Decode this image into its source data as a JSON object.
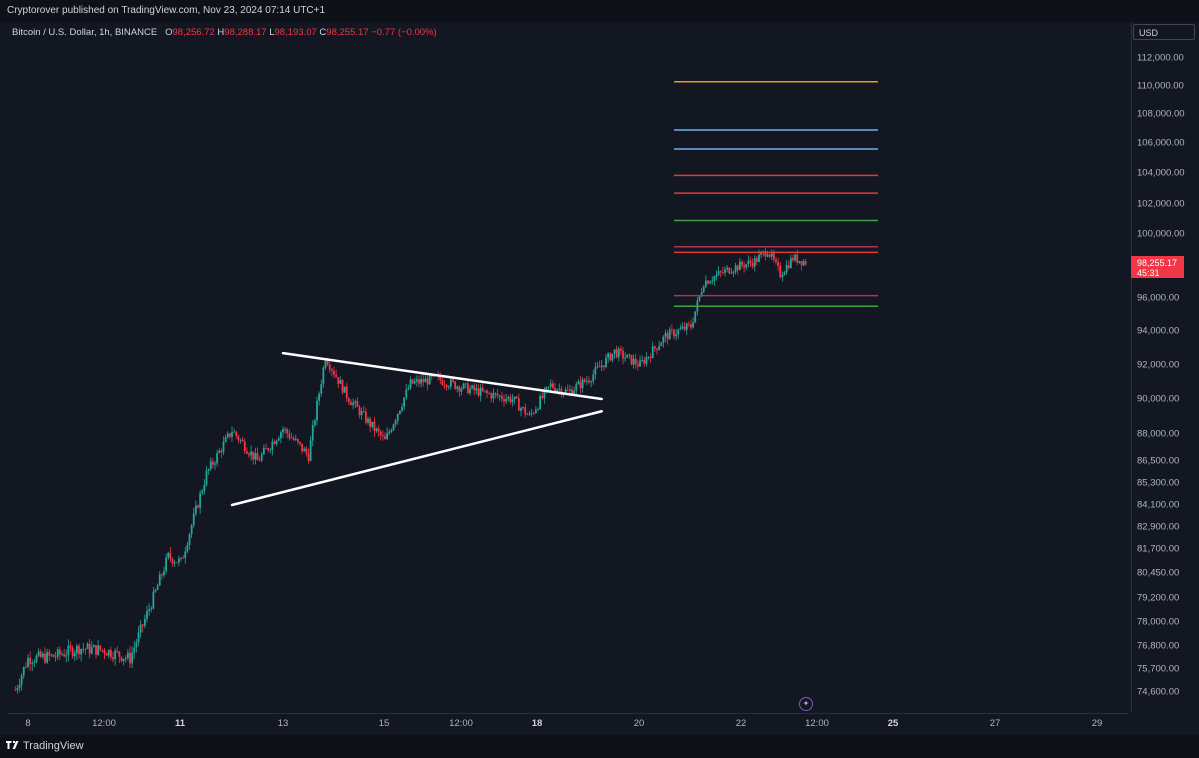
{
  "header": {
    "publisher_text": "Cryptorover published on TradingView.com, Nov 23, 2024 07:14 UTC+1"
  },
  "legend": {
    "symbol": "Bitcoin / U.S. Dollar, 1h, BINANCE",
    "o_label": "O",
    "o_value": "98,256.72",
    "h_label": "H",
    "h_value": "98,288.17",
    "l_label": "L",
    "l_value": "98,193.07",
    "c_label": "C",
    "c_value": "98,255.17",
    "change": "−0.77 (−0.00%)"
  },
  "price_axis": {
    "currency": "USD",
    "labels": [
      "112,000.00",
      "110,000.00",
      "108,000.00",
      "106,000.00",
      "104,000.00",
      "102,000.00",
      "100,000.00",
      "96,000.00",
      "94,000.00",
      "92,000.00",
      "90,000.00",
      "88,000.00",
      "86,500.00",
      "85,300.00",
      "84,100.00",
      "82,900.00",
      "81,700.00",
      "80,450.00",
      "79,200.00",
      "78,000.00",
      "76,800.00",
      "75,700.00",
      "74,600.00"
    ],
    "current_price": "98,255.17",
    "countdown": "45:31"
  },
  "time_axis": {
    "labels": [
      "8",
      "12:00",
      "11",
      "13",
      "15",
      "12:00",
      "18",
      "20",
      "22",
      "12:00",
      "25",
      "27",
      "29"
    ],
    "bold": [
      false,
      false,
      true,
      false,
      false,
      false,
      true,
      false,
      false,
      false,
      true,
      false,
      false
    ]
  },
  "footer": {
    "brand": "TradingView"
  },
  "colors": {
    "up": "#26a69a",
    "down": "#f23645",
    "orange": "#e49a2f",
    "blue": "#64b5f6",
    "red_level": "#e53935",
    "green_level": "#43a047",
    "maroon_level": "#b2334d",
    "trendline": "#ffffff"
  },
  "chart_data": {
    "type": "candlestick",
    "symbol": "BTCUSD",
    "interval": "1h",
    "ylim": [
      73800,
      113000
    ],
    "price_series": [
      {
        "date": "Nov 7 18:00",
        "price": 74700
      },
      {
        "date": "Nov 8 00:00",
        "price": 76200
      },
      {
        "date": "Nov 8 12:00",
        "price": 76300
      },
      {
        "date": "Nov 9 00:00",
        "price": 76700
      },
      {
        "date": "Nov 9 12:00",
        "price": 76600
      },
      {
        "date": "Nov 10 00:00",
        "price": 76200
      },
      {
        "date": "Nov 10 12:00",
        "price": 79500
      },
      {
        "date": "Nov 10 18:00",
        "price": 81300
      },
      {
        "date": "Nov 11 00:00",
        "price": 81000
      },
      {
        "date": "Nov 11 12:00",
        "price": 85800
      },
      {
        "date": "Nov 12 00:00",
        "price": 88200
      },
      {
        "date": "Nov 12 12:00",
        "price": 86500
      },
      {
        "date": "Nov 13 00:00",
        "price": 88300
      },
      {
        "date": "Nov 13 12:00",
        "price": 86800
      },
      {
        "date": "Nov 13 20:00",
        "price": 92500
      },
      {
        "date": "Nov 14 06:00",
        "price": 90200
      },
      {
        "date": "Nov 14 16:00",
        "price": 88700
      },
      {
        "date": "Nov 15 00:00",
        "price": 87600
      },
      {
        "date": "Nov 15 12:00",
        "price": 90900
      },
      {
        "date": "Nov 16 00:00",
        "price": 91200
      },
      {
        "date": "Nov 16 12:00",
        "price": 90700
      },
      {
        "date": "Nov 17 00:00",
        "price": 90300
      },
      {
        "date": "Nov 17 12:00",
        "price": 90000
      },
      {
        "date": "Nov 17 20:00",
        "price": 89000
      },
      {
        "date": "Nov 18 06:00",
        "price": 90800
      },
      {
        "date": "Nov 18 14:00",
        "price": 90400
      },
      {
        "date": "Nov 19 00:00",
        "price": 91200
      },
      {
        "date": "Nov 19 12:00",
        "price": 92800
      },
      {
        "date": "Nov 20 00:00",
        "price": 92000
      },
      {
        "date": "Nov 20 12:00",
        "price": 93700
      },
      {
        "date": "Nov 21 00:00",
        "price": 94300
      },
      {
        "date": "Nov 21 06:00",
        "price": 97000
      },
      {
        "date": "Nov 21 18:00",
        "price": 97800
      },
      {
        "date": "Nov 22 06:00",
        "price": 98300
      },
      {
        "date": "Nov 22 12:00",
        "price": 99000
      },
      {
        "date": "Nov 22 18:00",
        "price": 97500
      },
      {
        "date": "Nov 23 00:00",
        "price": 98500
      },
      {
        "date": "Nov 23 06:00",
        "price": 98255.17
      }
    ],
    "trendlines": [
      {
        "name": "upper",
        "from": {
          "date": "Nov 13 00:00",
          "price": 92700
        },
        "to": {
          "date": "Nov 19 06:00",
          "price": 90000
        }
      },
      {
        "name": "lower",
        "from": {
          "date": "Nov 12 00:00",
          "price": 84100
        },
        "to": {
          "date": "Nov 19 06:00",
          "price": 89300
        }
      }
    ],
    "levels": [
      {
        "price": 110300,
        "color": "orange"
      },
      {
        "price": 106900,
        "color": "blue"
      },
      {
        "price": 105600,
        "color": "blue"
      },
      {
        "price": 103850,
        "color": "red_level"
      },
      {
        "price": 102700,
        "color": "red_level"
      },
      {
        "price": 100900,
        "color": "green_level"
      },
      {
        "price": 99200,
        "color": "maroon_level"
      },
      {
        "price": 98850,
        "color": "red_level"
      },
      {
        "price": 96150,
        "color": "maroon_level"
      },
      {
        "price": 95500,
        "color": "green_level"
      }
    ],
    "levels_range": {
      "from": "Nov 20 16:00",
      "to": "Nov 24 16:00"
    }
  }
}
